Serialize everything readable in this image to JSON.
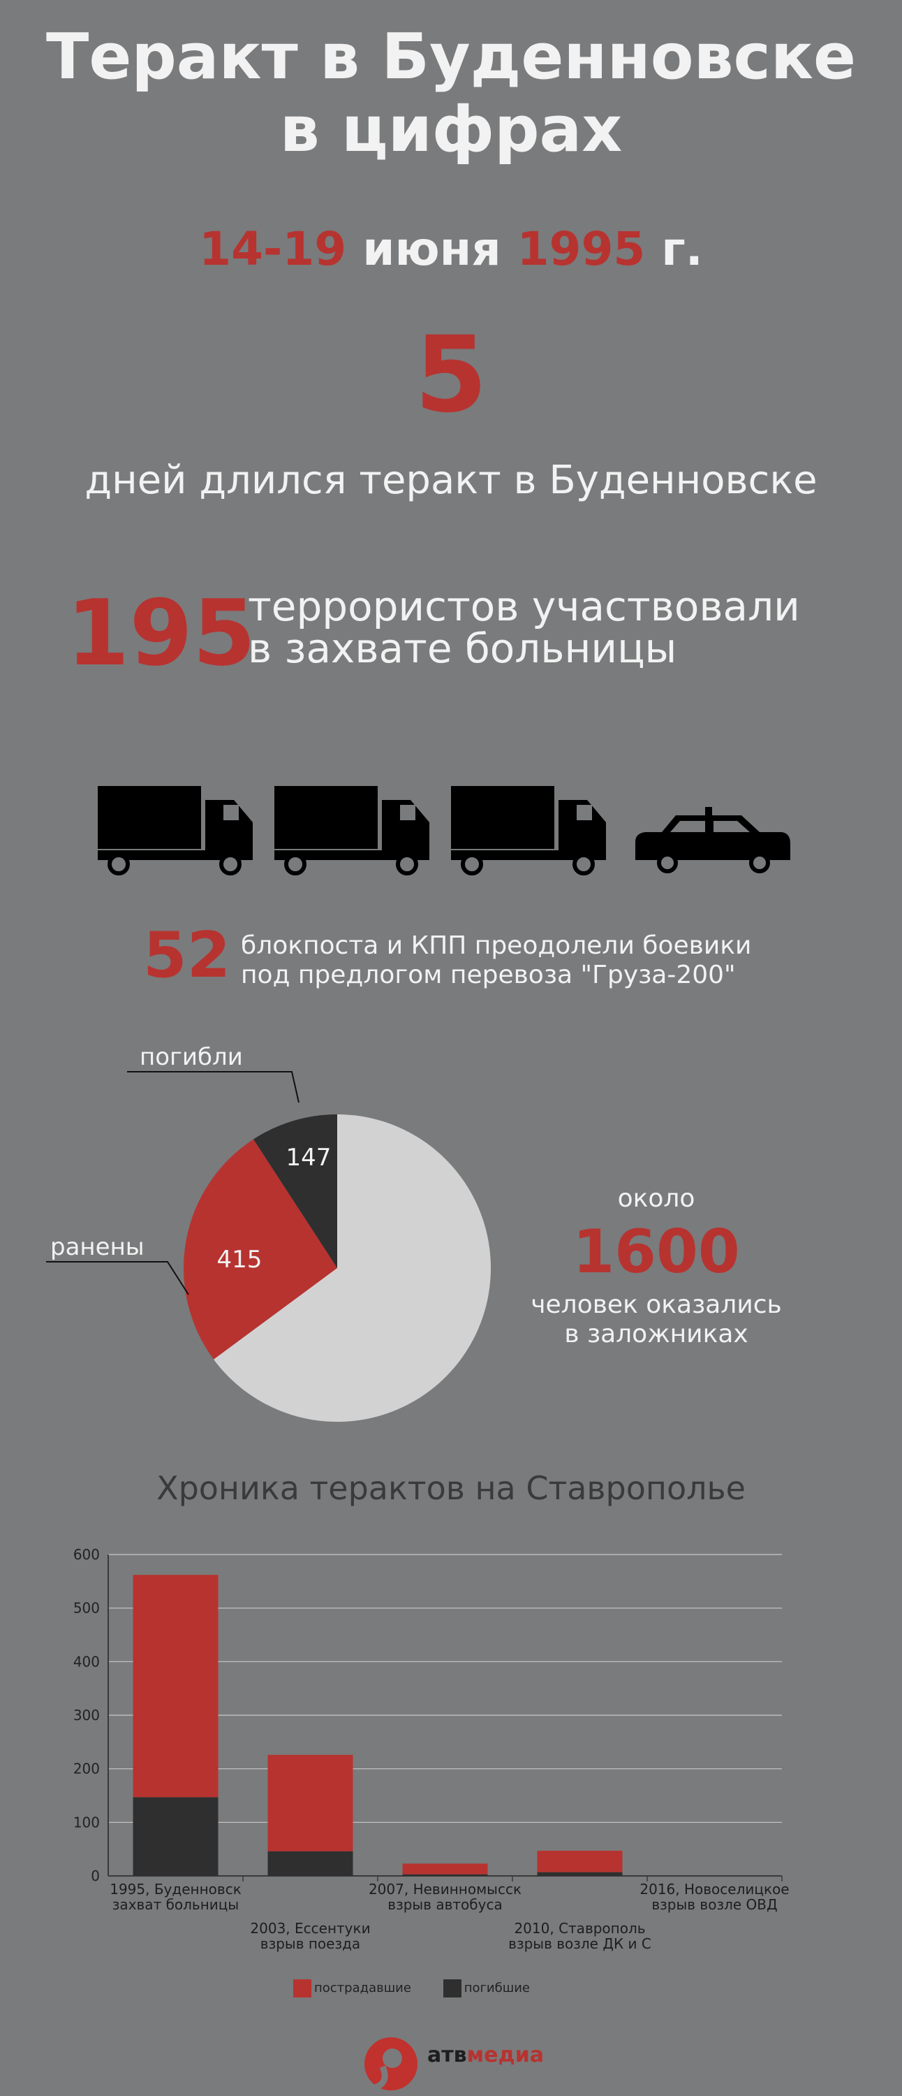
{
  "header": {
    "title_line1": "Теракт в Буденновске",
    "title_line2": "в цифрах"
  },
  "dates": {
    "days": "14-19",
    "month": "июня",
    "year": "1995",
    "suffix": "г."
  },
  "duration": {
    "value": "5",
    "label": "дней длился теракт в Буденновске"
  },
  "terrorists": {
    "value": "195",
    "line1": "террористов участвовали",
    "line2": "в захвате больницы"
  },
  "checkpoints": {
    "value": "52",
    "line1": "блокпоста и КПП преодолели боевики",
    "line2": "под предлогом перевоза \"Груза-200\""
  },
  "vehicles": [
    "truck-icon",
    "truck-icon",
    "truck-icon",
    "car-icon"
  ],
  "hostages": {
    "prefix": "около",
    "value": "1600",
    "line1": "человек оказались",
    "line2": "в заложниках"
  },
  "colors": {
    "red": "#b73330",
    "dark": "#2f2f2f",
    "light": "#d3d2d3",
    "background": "#7a7b7c"
  },
  "chart_data": [
    {
      "type": "pie",
      "total": 1600,
      "slices": [
        {
          "label": "погибли",
          "value": 147,
          "color": "#2f2f2f"
        },
        {
          "label": "ранены",
          "value": 415,
          "color": "#b73330"
        },
        {
          "label": "",
          "value": 1038,
          "color": "#d3d2d3"
        }
      ]
    },
    {
      "type": "bar",
      "stacked": true,
      "title": "Хроника терактов на Ставрополье",
      "ylim": [
        0,
        600
      ],
      "yticks": [
        0,
        100,
        200,
        300,
        400,
        500,
        600
      ],
      "grid": true,
      "legend_position": "bottom",
      "categories": [
        {
          "line1": "1995, Буденновск",
          "line2": "захват больницы"
        },
        {
          "line1": "2003, Ессентуки",
          "line2": "взрыв поезда"
        },
        {
          "line1": "2007, Невинномысск",
          "line2": "взрыв автобуса"
        },
        {
          "line1": "2010, Ставрополь",
          "line2": "взрыв возле ДК и С"
        },
        {
          "line1": "2016, Новоселицкое",
          "line2": "взрыв возле ОВД"
        }
      ],
      "series": [
        {
          "name": "погибшие",
          "color": "#2f2f2f",
          "values": [
            147,
            46,
            3,
            7,
            0
          ]
        },
        {
          "name": "пострадавшие",
          "color": "#b73330",
          "values": [
            415,
            180,
            20,
            40,
            0
          ]
        }
      ],
      "legend_order": [
        "пострадавшие",
        "погибшие"
      ]
    }
  ],
  "footer": {
    "brand_prefix": "атв",
    "brand_suffix": "медиа"
  }
}
